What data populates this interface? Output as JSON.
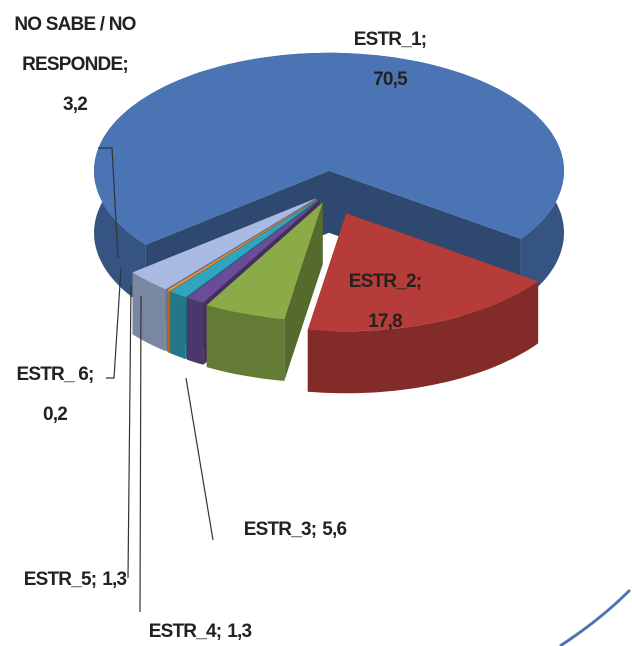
{
  "chart_data": {
    "type": "pie3d",
    "categories": [
      "ESTR_1;",
      "ESTR_2;",
      "ESTR_3;",
      "ESTR_4;",
      "ESTR_5;",
      "ESTR_ 6;",
      "NO SABE / NO RESPONDE;"
    ],
    "values": [
      70.5,
      17.8,
      5.6,
      1.3,
      1.3,
      0.2,
      3.2
    ],
    "value_labels": [
      "70,5",
      "17,8",
      "5,6",
      "1,3",
      "1,3",
      "0,2",
      "3,2"
    ],
    "colors": [
      "#4a74b4",
      "#b53c38",
      "#8aab48",
      "#6a4c98",
      "#31a5c0",
      "#f39433",
      "#a9bbe2"
    ]
  }
}
